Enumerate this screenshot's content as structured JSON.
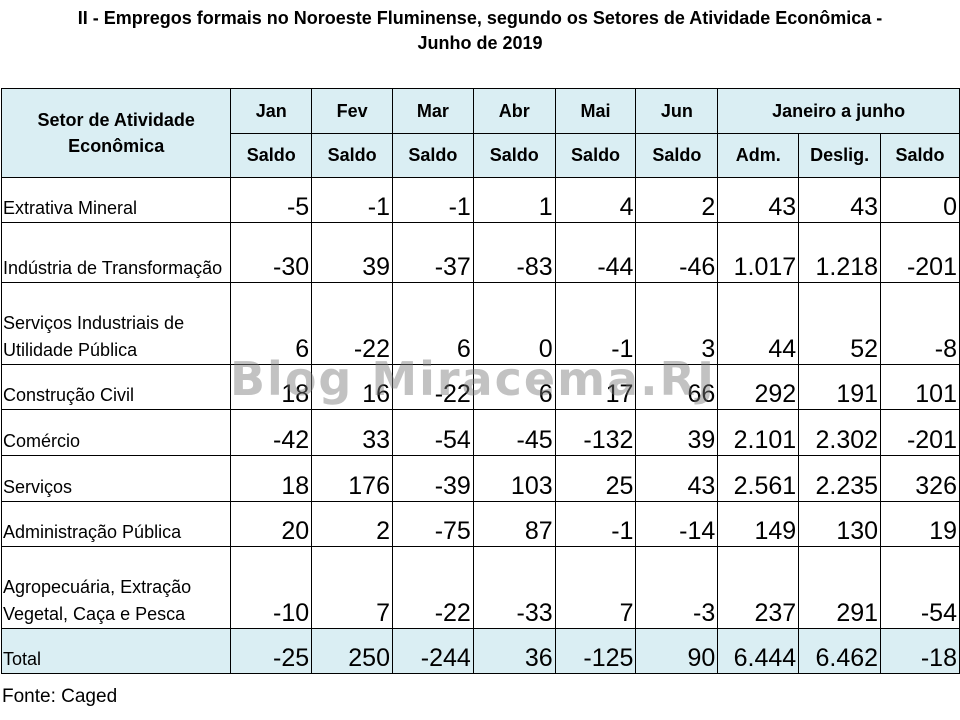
{
  "title_line1": "II - Empregos formais no Noroeste Fluminense, segundo os Setores de Atividade Econômica -",
  "title_line2": "Junho de 2019",
  "header": {
    "sector": "Setor de Atividade Econômica",
    "months": [
      "Jan",
      "Fev",
      "Mar",
      "Abr",
      "Mai",
      "Jun"
    ],
    "period": "Janeiro a junho",
    "saldo": "Saldo",
    "adm": "Adm.",
    "deslig": "Deslig."
  },
  "rows": [
    {
      "sector": "Extrativa Mineral",
      "values": [
        "-5",
        "-1",
        "-1",
        "1",
        "4",
        "2",
        "43",
        "43",
        "0"
      ]
    },
    {
      "sector": "Indústria de Transformação",
      "values": [
        "-30",
        "39",
        "-37",
        "-83",
        "-44",
        "-46",
        "1.017",
        "1.218",
        "-201"
      ]
    },
    {
      "sector": "Serviços Industriais de Utilidade Pública",
      "values": [
        "6",
        "-22",
        "6",
        "0",
        "-1",
        "3",
        "44",
        "52",
        "-8"
      ]
    },
    {
      "sector": "Construção Civil",
      "values": [
        "18",
        "16",
        "-22",
        "6",
        "17",
        "66",
        "292",
        "191",
        "101"
      ]
    },
    {
      "sector": "Comércio",
      "values": [
        "-42",
        "33",
        "-54",
        "-45",
        "-132",
        "39",
        "2.101",
        "2.302",
        "-201"
      ]
    },
    {
      "sector": "Serviços",
      "values": [
        "18",
        "176",
        "-39",
        "103",
        "25",
        "43",
        "2.561",
        "2.235",
        "326"
      ]
    },
    {
      "sector": "Administração Pública",
      "values": [
        "20",
        "2",
        "-75",
        "87",
        "-1",
        "-14",
        "149",
        "130",
        "19"
      ]
    },
    {
      "sector": "Agropecuária, Extração Vegetal, Caça e Pesca",
      "values": [
        "-10",
        "7",
        "-22",
        "-33",
        "7",
        "-3",
        "237",
        "291",
        "-54"
      ]
    }
  ],
  "total": {
    "sector": "Total",
    "values": [
      "-25",
      "250",
      "-244",
      "36",
      "-125",
      "90",
      "6.444",
      "6.462",
      "-18"
    ]
  },
  "watermark": "Blog Miracema.RJ",
  "source": "Fonte: Caged"
}
